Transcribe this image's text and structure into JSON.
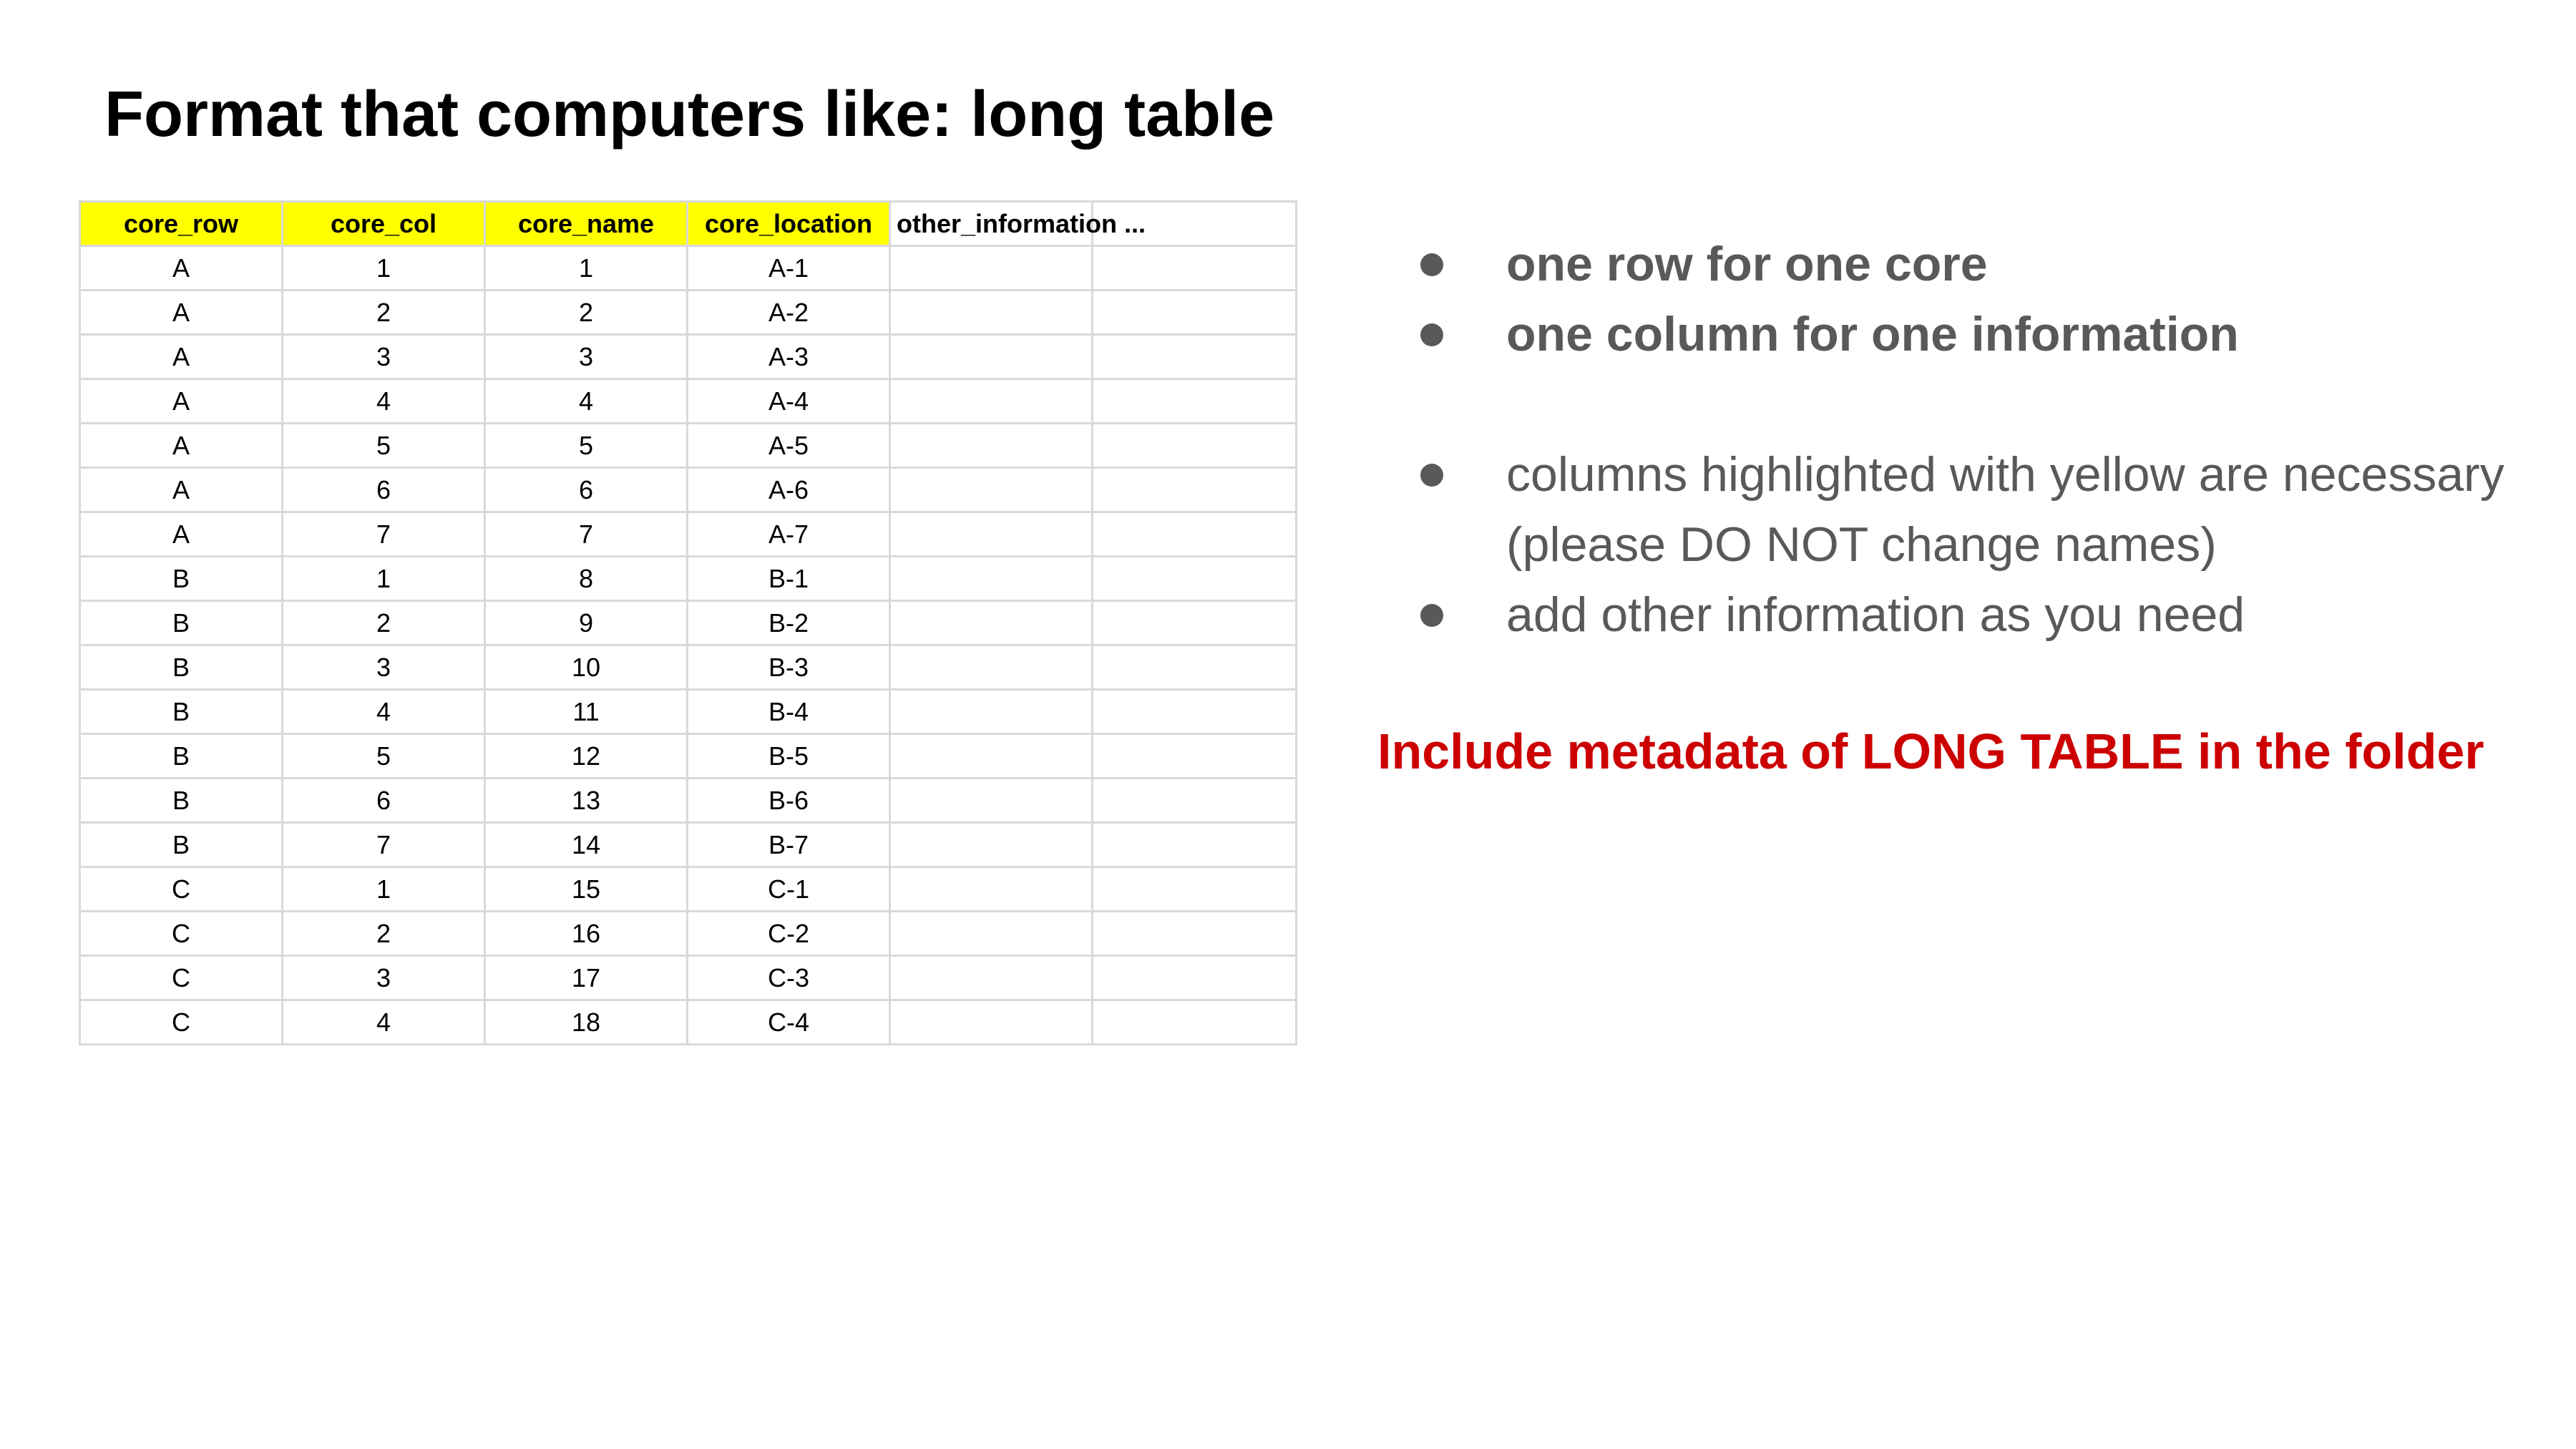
{
  "title": "Format that computers like: long table",
  "table": {
    "headers": [
      "core_row",
      "core_col",
      "core_name",
      "core_location",
      "other_information ...",
      ""
    ],
    "rows": [
      [
        "A",
        "1",
        "1",
        "A-1",
        "",
        ""
      ],
      [
        "A",
        "2",
        "2",
        "A-2",
        "",
        ""
      ],
      [
        "A",
        "3",
        "3",
        "A-3",
        "",
        ""
      ],
      [
        "A",
        "4",
        "4",
        "A-4",
        "",
        ""
      ],
      [
        "A",
        "5",
        "5",
        "A-5",
        "",
        ""
      ],
      [
        "A",
        "6",
        "6",
        "A-6",
        "",
        ""
      ],
      [
        "A",
        "7",
        "7",
        "A-7",
        "",
        ""
      ],
      [
        "B",
        "1",
        "8",
        "B-1",
        "",
        ""
      ],
      [
        "B",
        "2",
        "9",
        "B-2",
        "",
        ""
      ],
      [
        "B",
        "3",
        "10",
        "B-3",
        "",
        ""
      ],
      [
        "B",
        "4",
        "11",
        "B-4",
        "",
        ""
      ],
      [
        "B",
        "5",
        "12",
        "B-5",
        "",
        ""
      ],
      [
        "B",
        "6",
        "13",
        "B-6",
        "",
        ""
      ],
      [
        "B",
        "7",
        "14",
        "B-7",
        "",
        ""
      ],
      [
        "C",
        "1",
        "15",
        "C-1",
        "",
        ""
      ],
      [
        "C",
        "2",
        "16",
        "C-2",
        "",
        ""
      ],
      [
        "C",
        "3",
        "17",
        "C-3",
        "",
        ""
      ],
      [
        "C",
        "4",
        "18",
        "C-4",
        "",
        ""
      ]
    ],
    "highlight_color": "#ffff00"
  },
  "bullets": {
    "one_row": "one row for one core",
    "one_column": "one column for one information",
    "highlighted": "columns highlighted with yellow are necessary (please DO NOT change names)",
    "add_other": "add other information as you need"
  },
  "note": "Include metadata of LONG TABLE in the folder",
  "colors": {
    "bullet_text": "#595959",
    "note": "#cc0000"
  }
}
